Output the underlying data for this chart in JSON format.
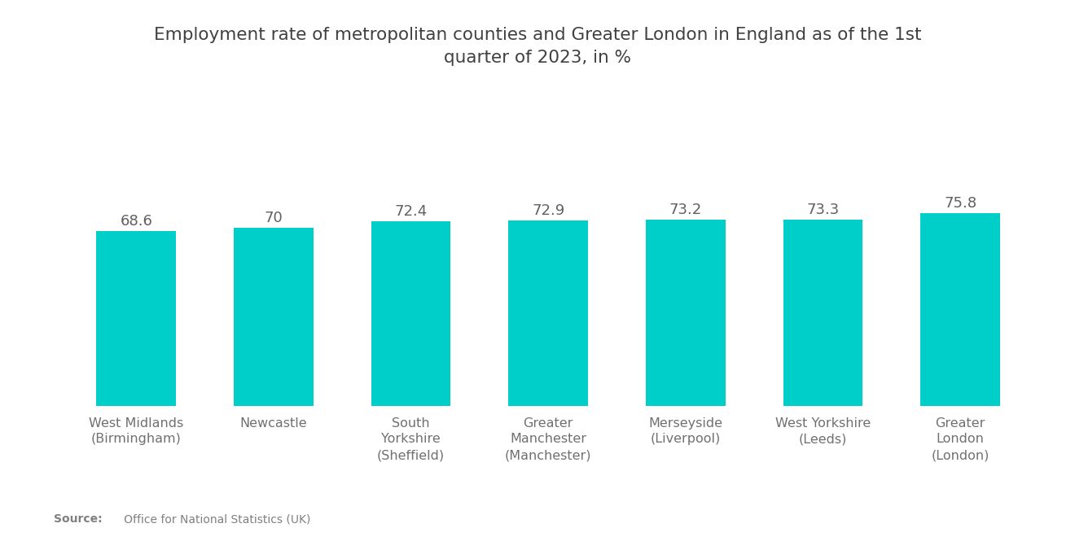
{
  "title": "Employment rate of metropolitan counties and Greater London in England as of the 1st\nquarter of 2023, in %",
  "categories": [
    "West Midlands\n(Birmingham)",
    "Newcastle",
    "South\nYorkshire\n(Sheffield)",
    "Greater\nManchester\n(Manchester)",
    "Merseyside\n(Liverpool)",
    "West Yorkshire\n(Leeds)",
    "Greater\nLondon\n(London)"
  ],
  "values": [
    68.6,
    70.0,
    72.4,
    72.9,
    73.2,
    73.3,
    75.8
  ],
  "bar_color": "#00CEC9",
  "value_labels": [
    "68.6",
    "70",
    "72.4",
    "72.9",
    "73.2",
    "73.3",
    "75.8"
  ],
  "ylim_min": 0,
  "ylim_max": 100,
  "source_bold": "Source:",
  "source_text": "   Office for National Statistics (UK)",
  "background_color": "#ffffff",
  "title_color": "#404040",
  "label_color": "#707070",
  "value_color": "#606060",
  "title_fontsize": 15.5,
  "label_fontsize": 11.5,
  "value_fontsize": 13
}
